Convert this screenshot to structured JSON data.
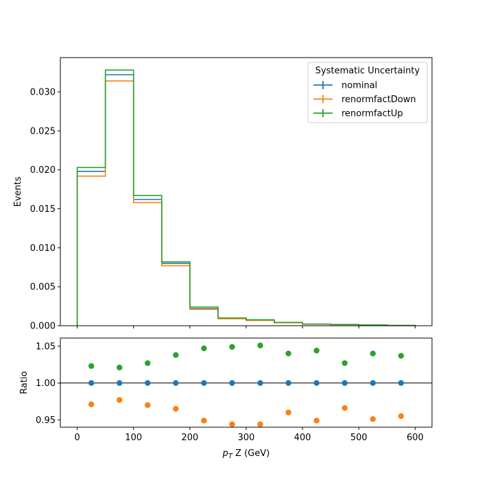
{
  "chart_data": [
    {
      "type": "step",
      "panel": "main",
      "ylabel": "Events",
      "xlim": [
        -30,
        630
      ],
      "ylim": [
        0,
        0.0344
      ],
      "bin_edges": [
        0,
        50,
        100,
        150,
        200,
        250,
        300,
        350,
        400,
        450,
        500,
        550,
        600
      ],
      "yticks": [
        0.0,
        0.005,
        0.01,
        0.015,
        0.02,
        0.025,
        0.03
      ],
      "ytick_labels": [
        "0.000",
        "0.005",
        "0.010",
        "0.015",
        "0.020",
        "0.025",
        "0.030"
      ],
      "xticks": [
        0,
        100,
        200,
        300,
        400,
        500,
        600
      ],
      "series": [
        {
          "name": "nominal",
          "color": "#1f77b4",
          "values": [
            0.0198,
            0.0322,
            0.0162,
            0.008,
            0.0022,
            0.00095,
            0.00072,
            0.0004,
            0.0002,
            0.00015,
            8e-05,
            3e-05
          ]
        },
        {
          "name": "renormfactDown",
          "color": "#ff7f0e",
          "values": [
            0.0192,
            0.0314,
            0.0158,
            0.0077,
            0.0021,
            0.0009,
            0.00068,
            0.00038,
            0.00019,
            0.00014,
            7e-05,
            2e-05
          ]
        },
        {
          "name": "renormfactUp",
          "color": "#2ca02c",
          "values": [
            0.0203,
            0.0328,
            0.0167,
            0.0082,
            0.0024,
            0.001,
            0.00076,
            0.00042,
            0.00021,
            0.00016,
            9e-05,
            4e-05
          ]
        }
      ],
      "legend": {
        "title": "Systematic Uncertainty",
        "placement": "top-right"
      }
    },
    {
      "type": "scatter",
      "panel": "ratio",
      "xlabel_prefix": "p",
      "xlabel_sub": "T",
      "xlabel_suffix": " Z (GeV)",
      "ylabel": "Ratio",
      "xlim": [
        -30,
        630
      ],
      "ylim": [
        0.94,
        1.061
      ],
      "xticks": [
        0,
        100,
        200,
        300,
        400,
        500,
        600
      ],
      "xtick_labels": [
        "0",
        "100",
        "200",
        "300",
        "400",
        "500",
        "600"
      ],
      "yticks": [
        0.95,
        1.0,
        1.05
      ],
      "ytick_labels": [
        "0.95",
        "1.00",
        "1.05"
      ],
      "reference_line": 1.0,
      "x": [
        25,
        75,
        125,
        175,
        225,
        275,
        325,
        375,
        425,
        475,
        525,
        575
      ],
      "series": [
        {
          "name": "nominal",
          "color": "#1f77b4",
          "values": [
            1.0,
            1.0,
            1.0,
            1.0,
            1.0,
            1.0,
            1.0,
            1.0,
            1.0,
            1.0,
            1.0,
            1.0
          ]
        },
        {
          "name": "renormfactDown",
          "color": "#ff7f0e",
          "values": [
            0.971,
            0.977,
            0.97,
            0.965,
            0.949,
            0.944,
            0.944,
            0.96,
            0.949,
            0.966,
            0.951,
            0.955
          ]
        },
        {
          "name": "renormfactUp",
          "color": "#2ca02c",
          "values": [
            1.023,
            1.021,
            1.027,
            1.038,
            1.047,
            1.049,
            1.051,
            1.04,
            1.044,
            1.027,
            1.04,
            1.037
          ]
        }
      ]
    }
  ]
}
